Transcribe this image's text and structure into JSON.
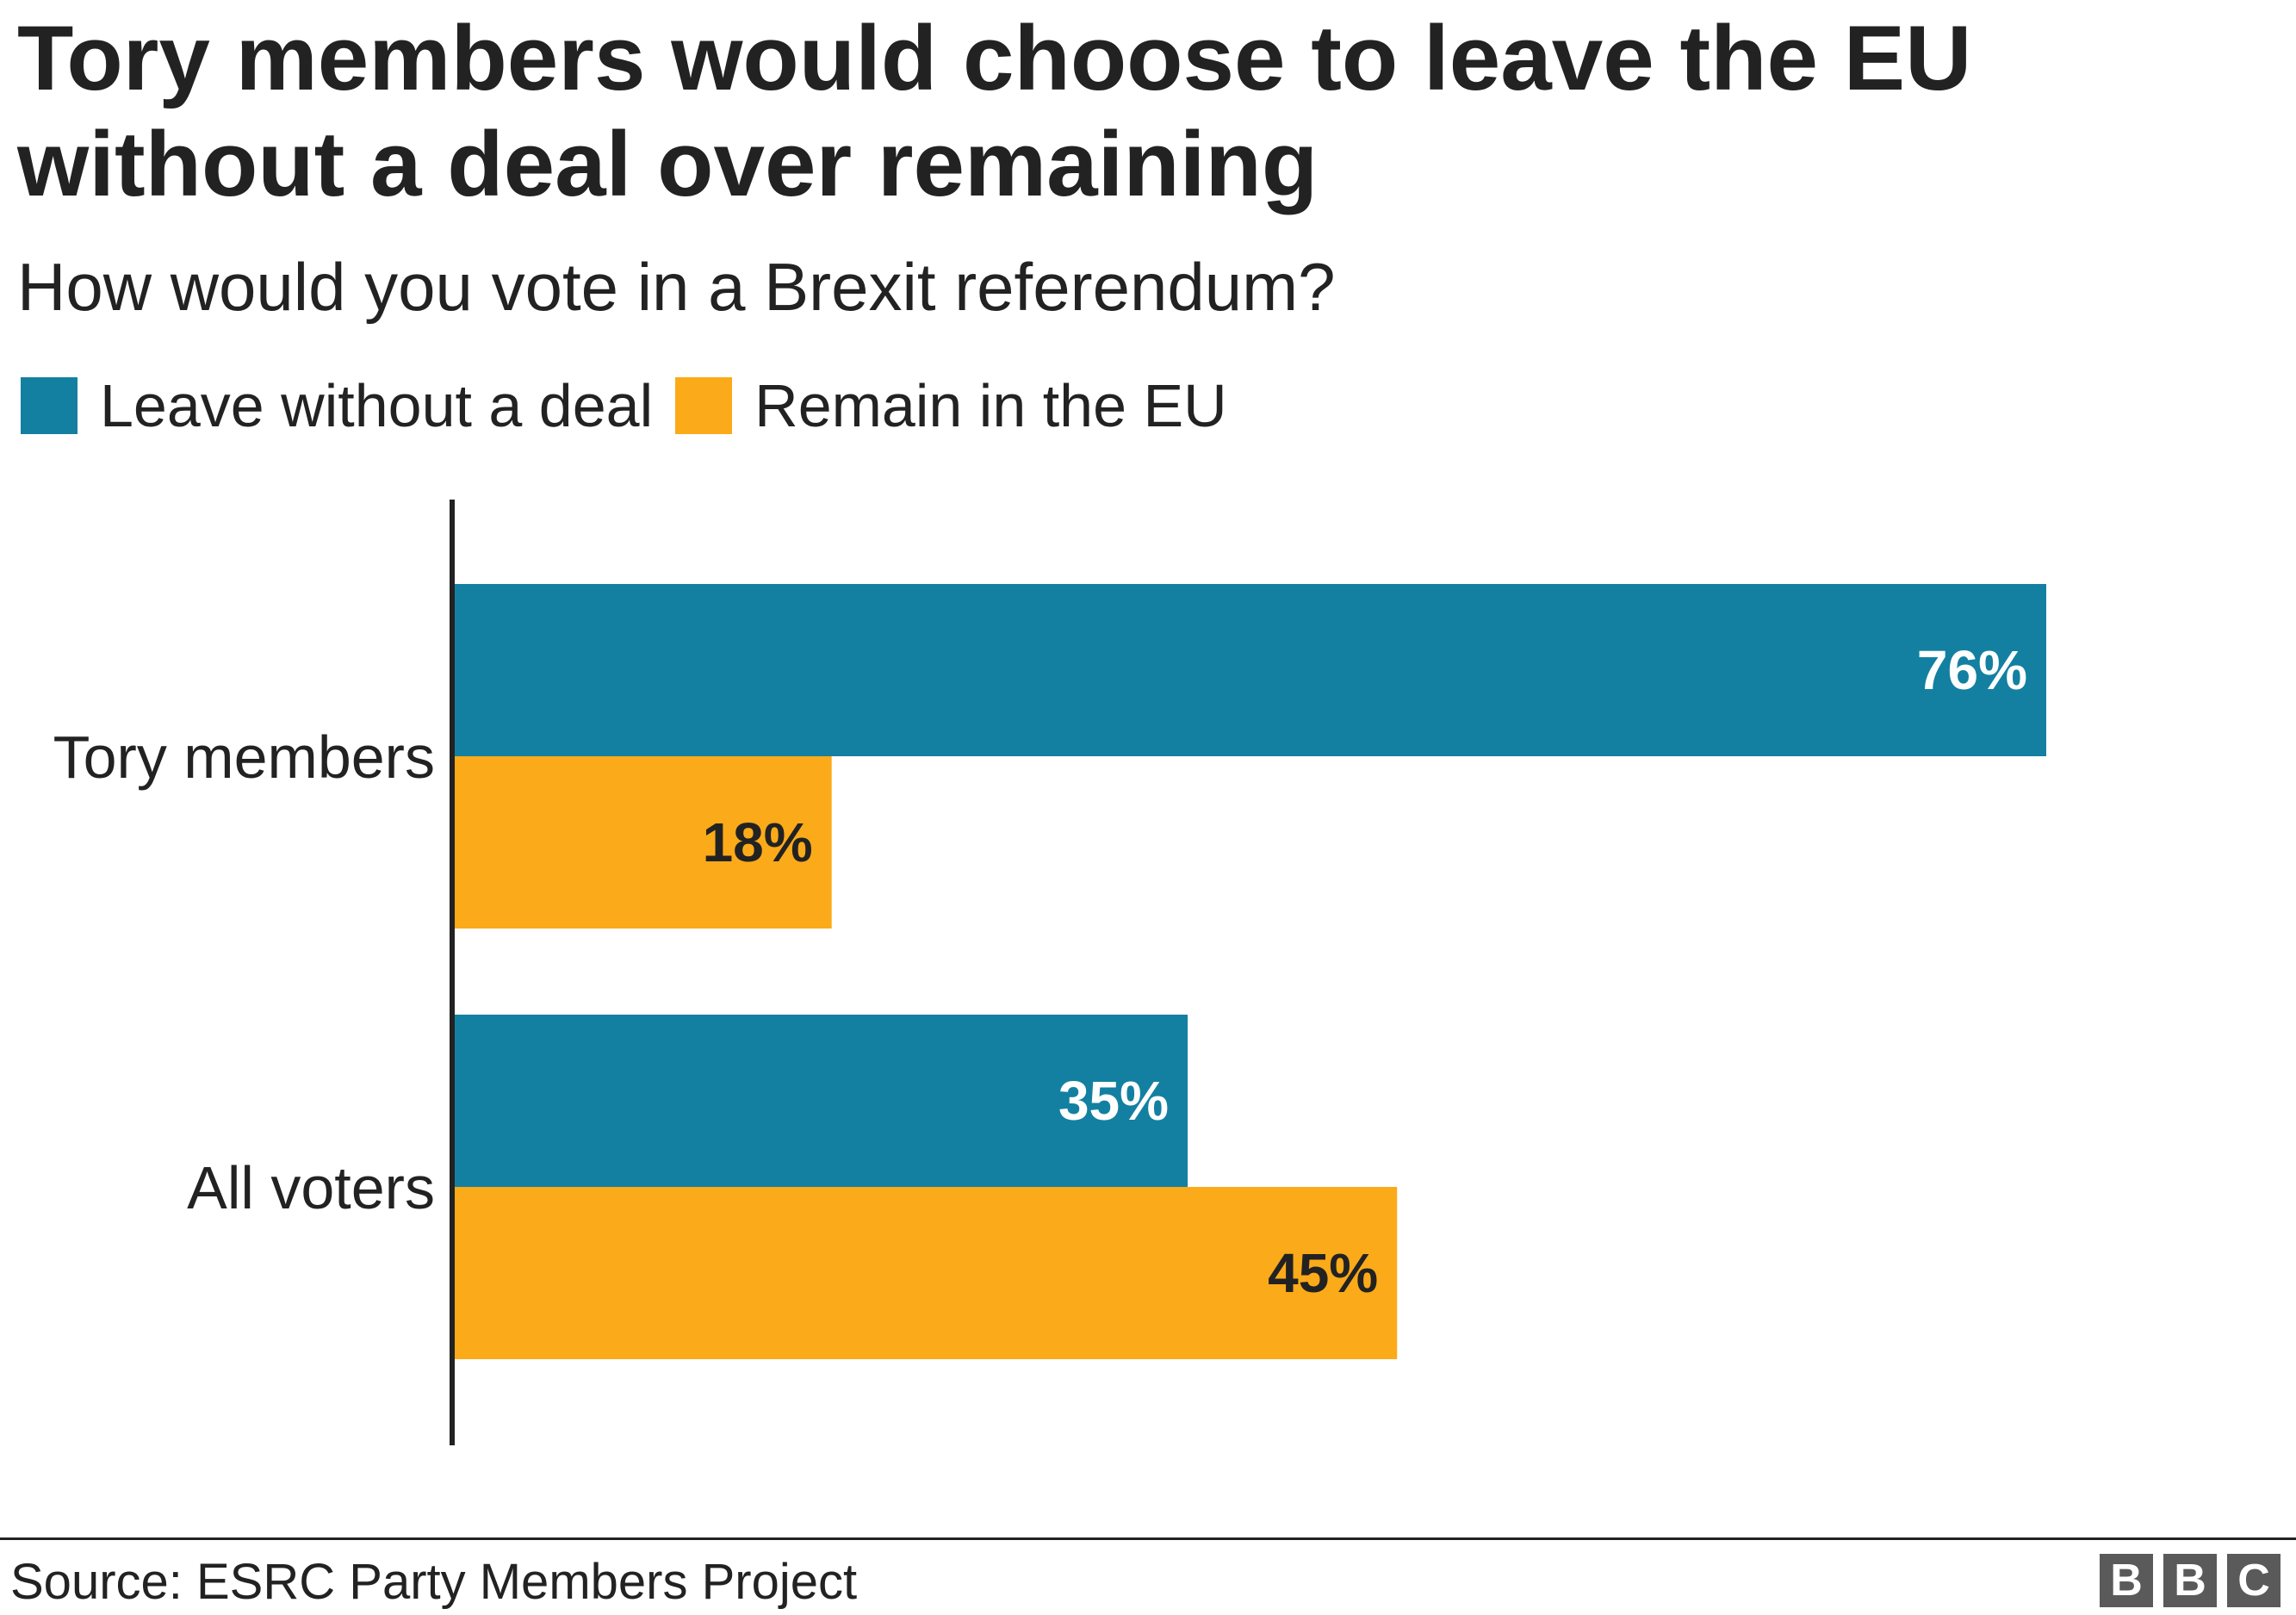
{
  "header": {
    "title": "Tory members would choose to leave the EU without a deal over remaining",
    "subtitle": "How would you vote in a Brexit referendum?"
  },
  "legend": [
    {
      "label": "Leave without a deal",
      "color": "#1380a1"
    },
    {
      "label": "Remain in the EU",
      "color": "#fbaa19"
    }
  ],
  "chart_data": {
    "type": "bar",
    "orientation": "horizontal",
    "title": "Tory members would choose to leave the EU without a deal over remaining",
    "subtitle": "How would you vote in a Brexit referendum?",
    "categories": [
      "Tory members",
      "All voters"
    ],
    "series": [
      {
        "name": "Leave without a deal",
        "values": [
          76,
          35
        ],
        "labels": [
          "76%",
          "35%"
        ],
        "color": "#1380a1",
        "label_color": "#ffffff"
      },
      {
        "name": "Remain in the EU",
        "values": [
          18,
          45
        ],
        "labels": [
          "18%",
          "45%"
        ],
        "color": "#fbaa19",
        "label_color": "#222222"
      }
    ],
    "unit": "%",
    "xlim": [
      0,
      100
    ],
    "grid": false,
    "legend_position": "top-left"
  },
  "footer": {
    "source": "Source: ESRC Party Members Project",
    "logo": [
      "B",
      "B",
      "C"
    ]
  }
}
